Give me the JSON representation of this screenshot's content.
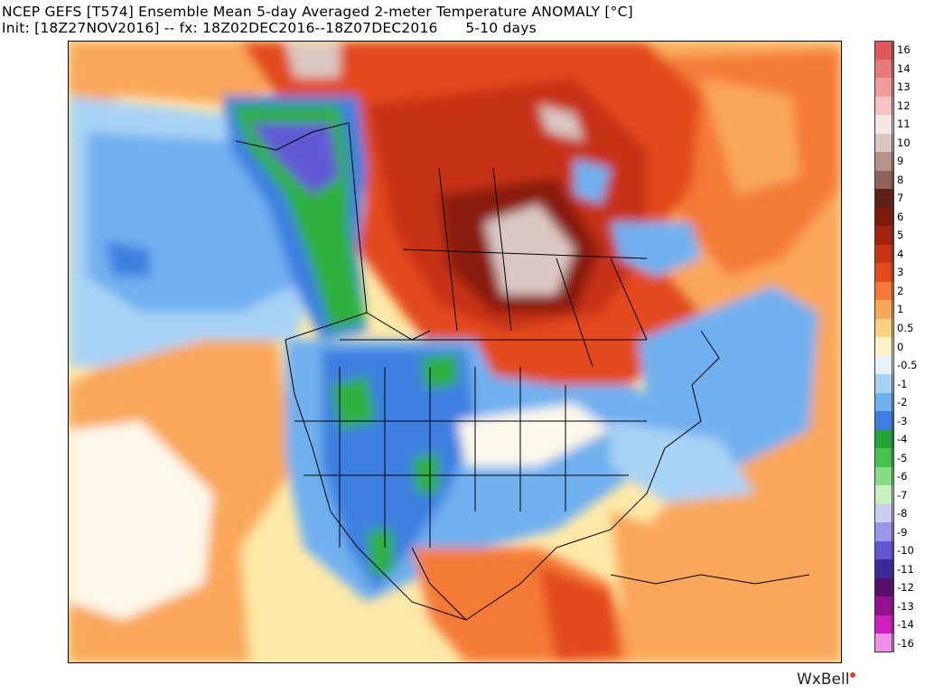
{
  "header": {
    "title": "NCEP GEFS [T574] Ensemble Mean 5-day Averaged 2-meter Temperature ANOMALY [°C]",
    "init_line": "Init: [18Z27NOV2016] -- fx: 18Z02DEC2016--18Z07DEC2016      5-10 days"
  },
  "colorbar": {
    "levels": [
      {
        "label": "16",
        "color": "#e0585a"
      },
      {
        "label": "14",
        "color": "#e97a7c"
      },
      {
        "label": "13",
        "color": "#f09b9d"
      },
      {
        "label": "12",
        "color": "#f6c3c4"
      },
      {
        "label": "11",
        "color": "#f6e6e4"
      },
      {
        "label": "10",
        "color": "#dcc8c2"
      },
      {
        "label": "9",
        "color": "#b8928a"
      },
      {
        "label": "8",
        "color": "#8e635a"
      },
      {
        "label": "7",
        "color": "#5e1f17"
      },
      {
        "label": "6",
        "color": "#7e1a0d"
      },
      {
        "label": "5",
        "color": "#a12410"
      },
      {
        "label": "4",
        "color": "#c63315"
      },
      {
        "label": "3",
        "color": "#e24a1e"
      },
      {
        "label": "2",
        "color": "#f47a38"
      },
      {
        "label": "1",
        "color": "#f9a75a"
      },
      {
        "label": "0.5",
        "color": "#fcd083"
      },
      {
        "label": "0",
        "color": "#fdf2c6"
      },
      {
        "label": "-0.5",
        "color": "#e6f1fb"
      },
      {
        "label": "-1",
        "color": "#a9d3f5"
      },
      {
        "label": "-2",
        "color": "#6fb0ef"
      },
      {
        "label": "-3",
        "color": "#3c7fe0"
      },
      {
        "label": "-4",
        "color": "#22a438"
      },
      {
        "label": "-5",
        "color": "#46c24f"
      },
      {
        "label": "-6",
        "color": "#86dd84"
      },
      {
        "label": "-7",
        "color": "#c7f0c2"
      },
      {
        "label": "-8",
        "color": "#ccccf5"
      },
      {
        "label": "-9",
        "color": "#9a96ea"
      },
      {
        "label": "-10",
        "color": "#6258d4"
      },
      {
        "label": "-11",
        "color": "#3a2a9c"
      },
      {
        "label": "-12",
        "color": "#5a0f6e"
      },
      {
        "label": "-13",
        "color": "#95108e"
      },
      {
        "label": "-14",
        "color": "#d21ec0"
      },
      {
        "label": "-16",
        "color": "#f190ea"
      }
    ]
  },
  "brand": {
    "name": "WxBell"
  },
  "map": {
    "region": "North America",
    "variable": "2-meter temperature anomaly",
    "palette": {
      "ocean_neutral": "#ffe9a8",
      "warm_light": "#f9a75a",
      "warm": "#f47a38",
      "warm_strong": "#e24a1e",
      "warm_very": "#c63315",
      "warm_dark": "#8a1f0f",
      "warm_extreme": "#dcc8c2",
      "cool_light": "#a9d3f5",
      "cool": "#6fb0ef",
      "cool_strong": "#3c7fe0",
      "cold_green": "#2fb03e",
      "cold_purple": "#6258d4",
      "neutral_white": "#fdf8ea"
    }
  }
}
